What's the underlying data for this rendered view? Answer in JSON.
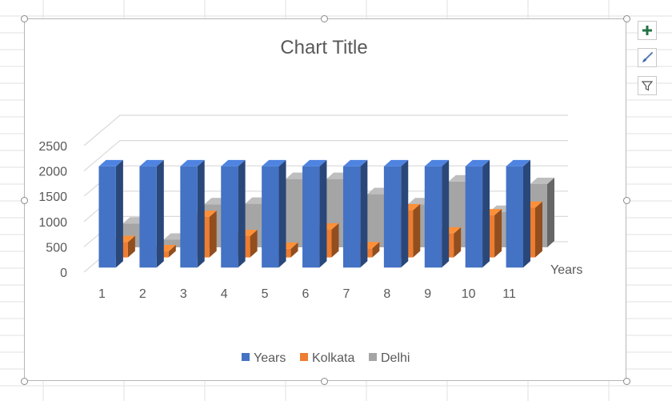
{
  "colors": {
    "years": "#4472c4",
    "kolkata": "#ed7d31",
    "delhi": "#a5a5a5",
    "text": "#595959",
    "gridline": "#d9d9d9",
    "sheet_grid": "#e2e2e2"
  },
  "side_buttons": [
    {
      "name": "chart-elements-button",
      "icon": "plus-icon"
    },
    {
      "name": "chart-styles-button",
      "icon": "paintbrush-icon"
    },
    {
      "name": "chart-filters-button",
      "icon": "funnel-icon"
    }
  ],
  "chart_data": {
    "type": "bar",
    "title": "Chart Title",
    "categories": [
      "1",
      "2",
      "3",
      "4",
      "5",
      "6",
      "7",
      "8",
      "9",
      "10",
      "11"
    ],
    "series": [
      {
        "name": "Years",
        "values": [
          2000,
          2000,
          2000,
          2000,
          2000,
          2000,
          2000,
          2000,
          2000,
          2000,
          2000
        ]
      },
      {
        "name": "Kolkata",
        "values": [
          300,
          120,
          800,
          420,
          170,
          550,
          180,
          930,
          470,
          830,
          980
        ]
      },
      {
        "name": "Delhi",
        "values": [
          470,
          150,
          850,
          860,
          1350,
          1350,
          1050,
          850,
          1300,
          700,
          1250
        ]
      }
    ],
    "series_axis_label": "Years",
    "ylim": [
      0,
      2500
    ],
    "yticks": [
      "0",
      "500",
      "1000",
      "1500",
      "2000",
      "2500"
    ],
    "grid": true,
    "legend_position": "bottom",
    "style": "3d-column"
  }
}
